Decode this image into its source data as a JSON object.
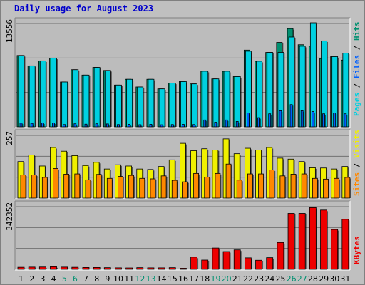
{
  "title": "Daily usage for August 2023",
  "colors": {
    "background": "#c0c0c0",
    "plot_bg": "#bcbcbc",
    "title": "#0000cc",
    "hits": "#009070",
    "files": "#0060ff",
    "pages": "#00d0e0",
    "visits": "#f0f000",
    "sites": "#ff8800",
    "kbytes": "#ee0000",
    "weekend_day": "#009070",
    "weekday": "#000000",
    "separator": "#000000"
  },
  "chart_data": [
    {
      "type": "bar",
      "title": "Daily usage for August 2023",
      "ylabel_parts": [
        "Pages",
        "Files",
        "Hits"
      ],
      "ylim_label": "13556",
      "ymax": 13556,
      "categories": [
        "1",
        "2",
        "3",
        "4",
        "5",
        "6",
        "7",
        "8",
        "9",
        "10",
        "11",
        "12",
        "13",
        "14",
        "15",
        "16",
        "17",
        "18",
        "19",
        "20",
        "21",
        "22",
        "23",
        "24",
        "25",
        "26",
        "27",
        "28",
        "29",
        "30",
        "31"
      ],
      "weekend_days": [
        5,
        6,
        12,
        13,
        19,
        20,
        26,
        27
      ],
      "series": [
        {
          "name": "Hits",
          "values": [
            9300,
            7950,
            8600,
            8950,
            5850,
            7450,
            6750,
            7750,
            7350,
            5450,
            6200,
            5200,
            6200,
            4950,
            5700,
            5900,
            5600,
            7250,
            6250,
            7250,
            6550,
            10000,
            8550,
            9700,
            11000,
            12800,
            10700,
            10500,
            8900,
            9150,
            8700
          ]
        },
        {
          "name": "Files",
          "values": [
            500,
            450,
            500,
            520,
            300,
            400,
            350,
            400,
            380,
            300,
            330,
            280,
            330,
            270,
            300,
            320,
            300,
            900,
            600,
            900,
            700,
            1800,
            1200,
            1700,
            2100,
            2900,
            2100,
            2000,
            1700,
            1800,
            1700
          ]
        },
        {
          "name": "Pages",
          "values": [
            9300,
            7950,
            8600,
            8950,
            5850,
            7450,
            6750,
            7750,
            7350,
            5450,
            6200,
            5200,
            6200,
            4950,
            5700,
            5900,
            5600,
            7250,
            6250,
            7250,
            6550,
            9850,
            8550,
            9700,
            9700,
            11700,
            10500,
            13556,
            11200,
            9150,
            9600
          ]
        }
      ]
    },
    {
      "type": "bar",
      "ylabel_parts": [
        "Sites",
        "Visits"
      ],
      "ylim_label": "257",
      "ymax": 257,
      "categories": [
        "1",
        "2",
        "3",
        "4",
        "5",
        "6",
        "7",
        "8",
        "9",
        "10",
        "11",
        "12",
        "13",
        "14",
        "15",
        "16",
        "17",
        "18",
        "19",
        "20",
        "21",
        "22",
        "23",
        "24",
        "25",
        "26",
        "27",
        "28",
        "29",
        "30",
        "31"
      ],
      "series": [
        {
          "name": "Visits",
          "values": [
            148,
            175,
            130,
            205,
            190,
            172,
            132,
            145,
            118,
            135,
            130,
            118,
            116,
            128,
            155,
            222,
            192,
            200,
            195,
            240,
            180,
            202,
            195,
            205,
            162,
            158,
            148,
            123,
            122,
            118,
            128
          ]
        },
        {
          "name": "Sites",
          "values": [
            94,
            94,
            84,
            120,
            97,
            98,
            74,
            96,
            80,
            88,
            92,
            80,
            78,
            90,
            72,
            66,
            100,
            85,
            100,
            138,
            73,
            98,
            98,
            114,
            90,
            97,
            98,
            80,
            77,
            80,
            84
          ]
        }
      ]
    },
    {
      "type": "bar",
      "ylabel_parts": [
        "KBytes"
      ],
      "ylim_label": "342352",
      "ymax": 342352,
      "categories": [
        "1",
        "2",
        "3",
        "4",
        "5",
        "6",
        "7",
        "8",
        "9",
        "10",
        "11",
        "12",
        "13",
        "14",
        "15",
        "16",
        "17",
        "18",
        "19",
        "20",
        "21",
        "22",
        "23",
        "24",
        "25",
        "26",
        "27",
        "28",
        "29",
        "30",
        "31"
      ],
      "series": [
        {
          "name": "KBytes",
          "values": [
            11000,
            12000,
            12500,
            14000,
            12000,
            11000,
            10000,
            10000,
            9000,
            8000,
            7500,
            9000,
            8000,
            8000,
            9000,
            6000,
            66000,
            50000,
            115000,
            96000,
            105000,
            62000,
            49000,
            63000,
            145000,
            302000,
            302000,
            333000,
            320000,
            215000,
            270000
          ]
        }
      ]
    }
  ]
}
